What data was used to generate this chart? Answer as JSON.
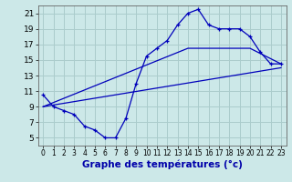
{
  "xlabel": "Graphe des températures (°c)",
  "background_color": "#cce8e8",
  "grid_color": "#aacccc",
  "line_color": "#0000bb",
  "xlim": [
    -0.5,
    23.5
  ],
  "ylim": [
    4,
    22
  ],
  "xticks": [
    0,
    1,
    2,
    3,
    4,
    5,
    6,
    7,
    8,
    9,
    10,
    11,
    12,
    13,
    14,
    15,
    16,
    17,
    18,
    19,
    20,
    21,
    22,
    23
  ],
  "yticks": [
    5,
    7,
    9,
    11,
    13,
    15,
    17,
    19,
    21
  ],
  "curve1_x": [
    0,
    1,
    2,
    3,
    4,
    5,
    6,
    7,
    8,
    9,
    10,
    11,
    12,
    13,
    14,
    15,
    16,
    17,
    18,
    19,
    20,
    21,
    22,
    23
  ],
  "curve1_y": [
    10.5,
    9.0,
    8.5,
    8.0,
    6.5,
    6.0,
    5.0,
    5.0,
    7.5,
    12.0,
    15.5,
    16.5,
    17.5,
    19.5,
    21.0,
    21.5,
    19.5,
    19.0,
    19.0,
    19.0,
    18.0,
    16.0,
    14.5,
    14.5
  ],
  "curve2_x": [
    0,
    23
  ],
  "curve2_y": [
    9.0,
    14.0
  ],
  "curve3_x": [
    0,
    14,
    20,
    23
  ],
  "curve3_y": [
    9.0,
    16.5,
    16.5,
    14.5
  ],
  "xlabel_color": "#0000aa",
  "xlabel_fontsize": 7.5,
  "tick_fontsize_x": 5.5,
  "tick_fontsize_y": 6.5
}
